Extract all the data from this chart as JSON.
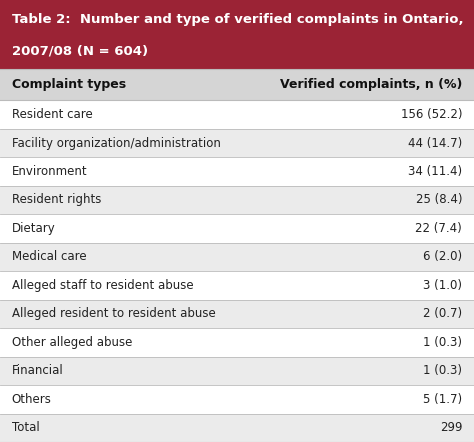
{
  "title_line1": "Table 2:  Number and type of verified complaints in Ontario,",
  "title_line2": "2007/08 (N = 604)",
  "header_col1": "Complaint types",
  "header_col2": "Verified complaints, n (%)",
  "rows": [
    [
      "Resident care",
      "156 (52.2)"
    ],
    [
      "Facility organization/administration",
      "44 (14.7)"
    ],
    [
      "Environment",
      "34 (11.4)"
    ],
    [
      "Resident rights",
      "25 (8.4)"
    ],
    [
      "Dietary",
      "22 (7.4)"
    ],
    [
      "Medical care",
      "6 (2.0)"
    ],
    [
      "Alleged staff to resident abuse",
      "3 (1.0)"
    ],
    [
      "Alleged resident to resident abuse",
      "2 (0.7)"
    ],
    [
      "Other alleged abuse",
      "1 (0.3)"
    ],
    [
      "Financial",
      "1 (0.3)"
    ],
    [
      "Others",
      "5 (1.7)"
    ],
    [
      "Total",
      "299"
    ]
  ],
  "header_bg": "#9B2335",
  "header_text_color": "#FFFFFF",
  "col_header_bg": "#D5D5D5",
  "col_header_text_color": "#111111",
  "row_even_bg": "#FFFFFF",
  "row_odd_bg": "#EBEBEB",
  "row_text_color": "#222222",
  "border_color": "#BBBBBB",
  "title_fontsize": 9.5,
  "header_fontsize": 9.0,
  "row_fontsize": 8.5,
  "fig_width": 4.74,
  "fig_height": 4.42,
  "dpi": 100
}
